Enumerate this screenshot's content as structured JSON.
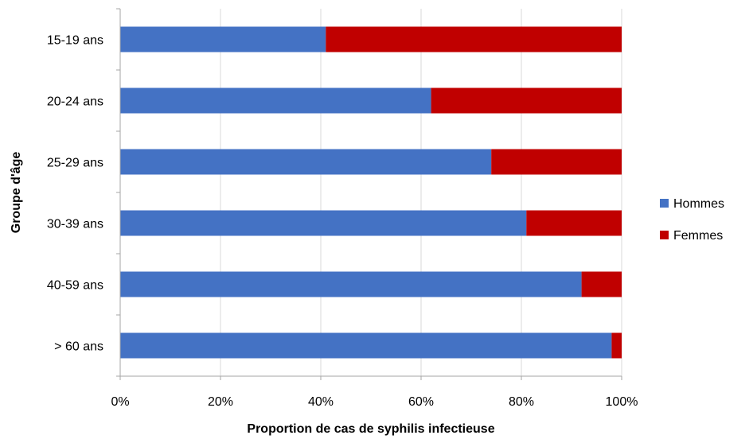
{
  "chart_data": {
    "type": "bar",
    "orientation": "horizontal",
    "stacked": "percent",
    "categories": [
      "15-19 ans",
      "20-24 ans",
      "25-29 ans",
      "30-39 ans",
      "40-59 ans",
      "> 60 ans"
    ],
    "series": [
      {
        "name": "Hommes",
        "color": "#4472C4",
        "values": [
          41,
          62,
          74,
          81,
          92,
          98
        ]
      },
      {
        "name": "Femmes",
        "color": "#C00000",
        "values": [
          59,
          38,
          26,
          19,
          8,
          2
        ]
      }
    ],
    "xlabel": "Proportion de cas de syphilis infectieuse",
    "ylabel": "Groupe d'âge",
    "xlim": [
      0,
      100
    ],
    "xticks": [
      "0%",
      "20%",
      "40%",
      "60%",
      "80%",
      "100%"
    ],
    "grid": "vertical",
    "legend_position": "right"
  }
}
